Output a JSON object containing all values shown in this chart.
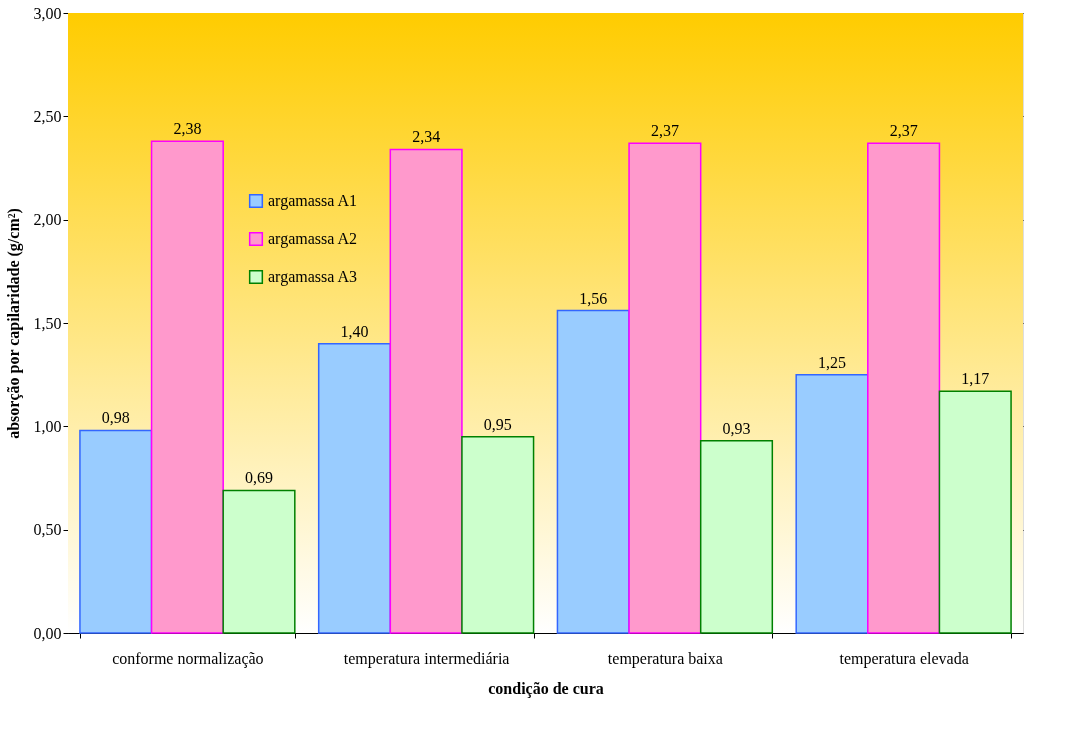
{
  "chart_data": {
    "type": "bar",
    "xlabel": "condição de cura",
    "ylabel": "absorção por capilaridade (g/cm²)",
    "categories": [
      "conforme normalização",
      "temperatura intermediária",
      "temperatura baixa",
      "temperatura elevada"
    ],
    "series": [
      {
        "name": "argamassa A1",
        "color": "#99ccff",
        "values": [
          0.98,
          1.4,
          1.56,
          1.25
        ],
        "value_labels": [
          "0,98",
          "1,40",
          "1,56",
          "1,25"
        ]
      },
      {
        "name": "argamassa A2",
        "color": "#ff99cc",
        "values": [
          2.38,
          2.34,
          2.37,
          2.37
        ],
        "value_labels": [
          "2,38",
          "2,34",
          "2,37",
          "2,37"
        ]
      },
      {
        "name": "argamassa A3",
        "color": "#ccffcc",
        "values": [
          0.69,
          0.95,
          0.93,
          1.17
        ],
        "value_labels": [
          "0,69",
          "0,95",
          "0,93",
          "1,17"
        ]
      }
    ],
    "ylim": [
      0,
      3
    ],
    "yticks": [
      {
        "value": 0,
        "label": "0,00"
      },
      {
        "value": 0.5,
        "label": "0,50"
      },
      {
        "value": 1,
        "label": "1,00"
      },
      {
        "value": 1.5,
        "label": "1,50"
      },
      {
        "value": 2,
        "label": "2,00"
      },
      {
        "value": 2.5,
        "label": "2,50"
      },
      {
        "value": 3,
        "label": "3,00"
      }
    ],
    "grid": "y",
    "legend": "top left"
  }
}
